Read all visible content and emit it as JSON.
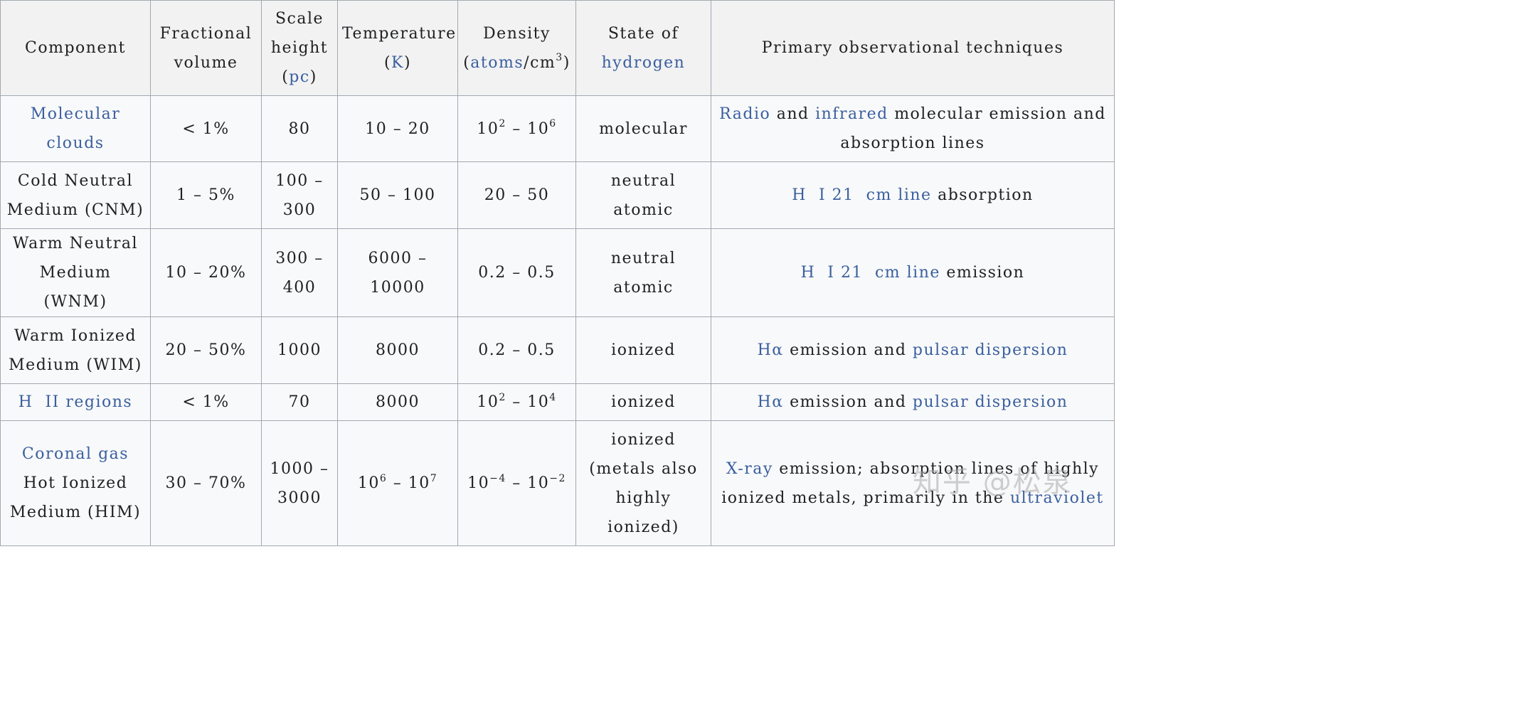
{
  "headers": {
    "component": "Component",
    "fractional_volume": [
      "Fractional",
      "volume"
    ],
    "scale_height": [
      "Scale",
      "height",
      "(",
      "pc",
      ")"
    ],
    "temperature": [
      "Temperature",
      "(",
      "K",
      ")"
    ],
    "density": [
      "Density",
      "(",
      "atoms",
      "/cm",
      "3",
      ")"
    ],
    "state": [
      "State of",
      "hydrogen"
    ],
    "techniques": "Primary observational techniques"
  },
  "rows": [
    {
      "component": [
        "Molecular",
        "clouds"
      ],
      "fractional_volume": "< 1%",
      "scale_height": [
        "80"
      ],
      "temperature": "10 – 20",
      "density": {
        "base1": "10",
        "exp1": "2",
        "sep": " – ",
        "base2": "10",
        "exp2": "6"
      },
      "state": [
        "molecular"
      ],
      "techniques": {
        "link1": "Radio",
        "t1": " and ",
        "link2": "infrared",
        "t2": " molecular emission and absorption lines"
      }
    },
    {
      "component": [
        "Cold Neutral",
        "Medium (CNM)"
      ],
      "fractional_volume": "1 – 5%",
      "scale_height": [
        "100 –",
        "300"
      ],
      "temperature": "50 – 100",
      "density": "20 – 50",
      "state": [
        "neutral",
        "atomic"
      ],
      "techniques": {
        "link1": "H  I 21  cm line",
        "t1": " absorption"
      }
    },
    {
      "component": [
        "Warm Neutral",
        "Medium (WNM)"
      ],
      "fractional_volume": "10 – 20%",
      "scale_height": [
        "300 –",
        "400"
      ],
      "temperature": "6000 – 10000",
      "density": "0.2 – 0.5",
      "state": [
        "neutral",
        "atomic"
      ],
      "techniques": {
        "link1": "H  I 21  cm line",
        "t1": " emission"
      }
    },
    {
      "component": [
        "Warm Ionized",
        "Medium (WIM)"
      ],
      "fractional_volume": "20 – 50%",
      "scale_height": [
        "1000"
      ],
      "temperature": "8000",
      "density": "0.2 – 0.5",
      "state": [
        "ionized"
      ],
      "techniques": {
        "link1": "Hα",
        "t1": " emission and ",
        "link2": "pulsar dispersion"
      }
    },
    {
      "component": [
        "H  II regions"
      ],
      "fractional_volume": "< 1%",
      "scale_height": [
        "70"
      ],
      "temperature": "8000",
      "density": {
        "base1": "10",
        "exp1": "2",
        "sep": " – ",
        "base2": "10",
        "exp2": "4"
      },
      "state": [
        "ionized"
      ],
      "techniques": {
        "link1": "Hα",
        "t1": " emission and ",
        "link2": "pulsar dispersion"
      }
    },
    {
      "component": [
        "Coronal gas",
        "Hot Ionized",
        "Medium (HIM)"
      ],
      "fractional_volume": "30 – 70%",
      "scale_height": [
        "1000 –",
        "3000"
      ],
      "temperature": {
        "base1": "10",
        "exp1": "6",
        "sep": " – ",
        "base2": "10",
        "exp2": "7"
      },
      "density": {
        "base1": "10",
        "exp1": "−4",
        "sep": " – ",
        "base2": "10",
        "exp2": "−2"
      },
      "state": [
        "ionized",
        "(metals also",
        "highly",
        "ionized)"
      ],
      "techniques": {
        "link1": "X-ray",
        "t1": " emission; absorption lines of highly ionized metals, primarily in the ",
        "link2": "ultraviolet"
      }
    }
  ],
  "watermark": "知乎 @松泉",
  "colors": {
    "link": "#3a5f9f",
    "header_bg": "#f2f2f2",
    "cell_bg": "#f8f9fa",
    "border": "#a2a9b1",
    "text": "#202122"
  }
}
